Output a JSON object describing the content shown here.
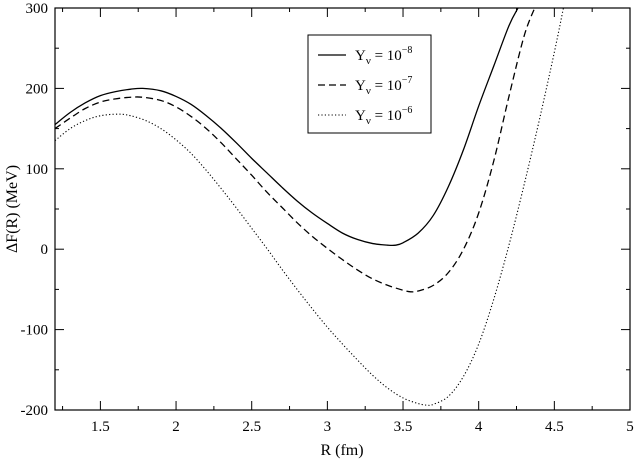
{
  "chart_data": {
    "type": "line",
    "title": "",
    "xlabel": "R  (fm)",
    "ylabel": "ΔF(R)  (MeV)",
    "xlim": [
      1.2,
      5.0
    ],
    "ylim": [
      -200,
      300
    ],
    "xticks": [
      1.5,
      2,
      2.5,
      3,
      3.5,
      4,
      4.5,
      5
    ],
    "xtick_labels": [
      "1.5",
      "2",
      "2.5",
      "3",
      "3.5",
      "4",
      "4.5",
      "5"
    ],
    "yticks": [
      -200,
      -100,
      0,
      100,
      200,
      300
    ],
    "ytick_labels": [
      "-200",
      "-100",
      "0",
      "100",
      "200",
      "300"
    ],
    "grid": false,
    "legend_position": "top-right",
    "series": [
      {
        "name": "Yν = 10−8",
        "legend": {
          "base": "Y",
          "sub": "ν",
          "eq": " = 10",
          "sup": "−8"
        },
        "style": "solid",
        "x": [
          1.2,
          1.3,
          1.4,
          1.5,
          1.6,
          1.7,
          1.78,
          1.9,
          2.0,
          2.1,
          2.2,
          2.3,
          2.4,
          2.5,
          2.6,
          2.7,
          2.8,
          2.9,
          3.0,
          3.1,
          3.2,
          3.3,
          3.4,
          3.45,
          3.5,
          3.6,
          3.7,
          3.8,
          3.9,
          4.0,
          4.1,
          4.2,
          4.26
        ],
        "y": [
          155,
          170,
          182,
          191,
          196,
          199,
          200,
          197,
          190,
          180,
          166,
          150,
          132,
          113,
          95,
          77,
          60,
          45,
          32,
          20,
          12,
          7,
          5,
          5,
          8,
          20,
          42,
          78,
          124,
          178,
          228,
          278,
          300
        ]
      },
      {
        "name": "Yν = 10−7",
        "legend": {
          "base": "Y",
          "sub": "ν",
          "eq": " = 10",
          "sup": "−7"
        },
        "style": "dashed",
        "x": [
          1.2,
          1.3,
          1.4,
          1.5,
          1.6,
          1.7,
          1.78,
          1.9,
          2.0,
          2.1,
          2.2,
          2.3,
          2.4,
          2.5,
          2.6,
          2.7,
          2.8,
          2.9,
          3.0,
          3.1,
          3.2,
          3.3,
          3.4,
          3.5,
          3.55,
          3.6,
          3.7,
          3.8,
          3.9,
          4.0,
          4.1,
          4.2,
          4.3,
          4.37
        ],
        "y": [
          150,
          163,
          175,
          183,
          187,
          189,
          189,
          185,
          177,
          165,
          150,
          132,
          112,
          92,
          71,
          52,
          33,
          16,
          1,
          -13,
          -26,
          -37,
          -45,
          -51,
          -53,
          -52,
          -45,
          -29,
          0,
          45,
          110,
          190,
          265,
          300
        ]
      },
      {
        "name": "Yν = 10−6",
        "legend": {
          "base": "Y",
          "sub": "ν",
          "eq": " = 10",
          "sup": "−6"
        },
        "style": "dotted",
        "x": [
          1.2,
          1.3,
          1.4,
          1.5,
          1.62,
          1.7,
          1.8,
          1.9,
          2.0,
          2.1,
          2.2,
          2.3,
          2.4,
          2.5,
          2.6,
          2.7,
          2.8,
          2.9,
          3.0,
          3.1,
          3.2,
          3.3,
          3.4,
          3.5,
          3.6,
          3.66,
          3.7,
          3.8,
          3.9,
          4.0,
          4.1,
          4.2,
          4.3,
          4.4,
          4.5,
          4.56
        ],
        "y": [
          135,
          150,
          160,
          166,
          168,
          166,
          160,
          150,
          136,
          119,
          98,
          75,
          51,
          26,
          1,
          -25,
          -50,
          -74,
          -97,
          -118,
          -138,
          -157,
          -173,
          -185,
          -192,
          -194,
          -193,
          -183,
          -158,
          -118,
          -62,
          5,
          80,
          160,
          245,
          300
        ]
      }
    ]
  }
}
